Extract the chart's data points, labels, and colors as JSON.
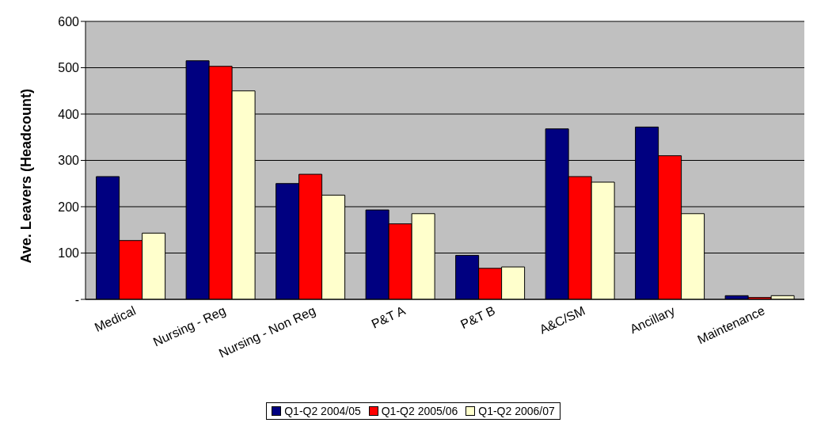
{
  "chart_data": {
    "type": "bar",
    "ylabel": "Ave. Leavers (Headcount)",
    "categories": [
      "Medical",
      "Nursing - Reg",
      "Nursing - Non Reg",
      "P&T A",
      "P&T B",
      "A&C/SM",
      "Ancillary",
      "Maintenance"
    ],
    "series": [
      {
        "name": "Q1-Q2 2004/05",
        "color": "#000080",
        "values": [
          265,
          515,
          250,
          193,
          95,
          368,
          372,
          8
        ]
      },
      {
        "name": "Q1-Q2 2005/06",
        "color": "#ff0000",
        "values": [
          127,
          503,
          270,
          163,
          67,
          265,
          310,
          4
        ]
      },
      {
        "name": "Q1-Q2 2006/07",
        "color": "#ffffcc",
        "values": [
          143,
          450,
          225,
          185,
          70,
          253,
          185,
          8
        ]
      }
    ],
    "ylim": [
      0,
      600
    ],
    "yticks": [
      {
        "value": 0,
        "label": "-"
      },
      100,
      200,
      300,
      400,
      500,
      600
    ],
    "grid": "y",
    "legend": "bottom"
  }
}
